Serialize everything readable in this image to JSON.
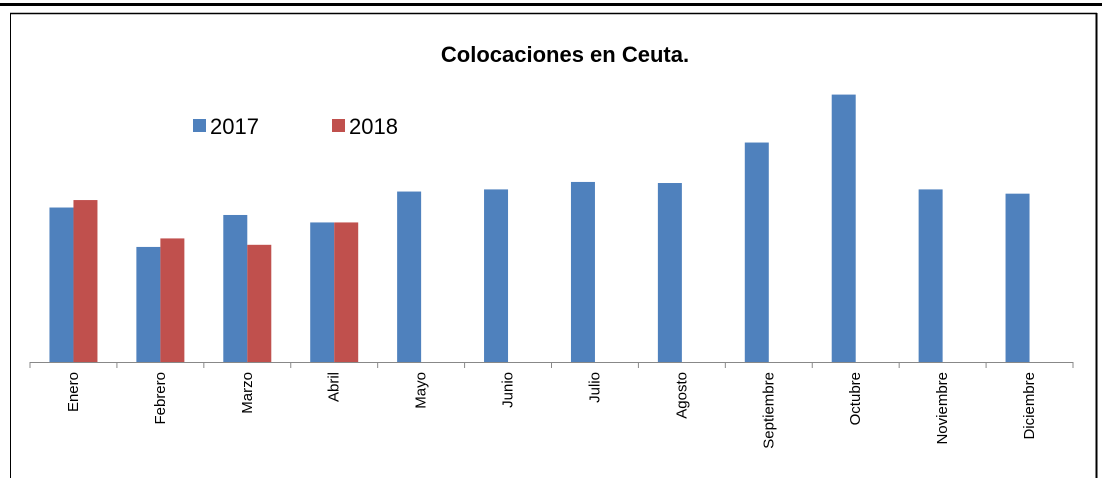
{
  "chart_data": {
    "type": "bar",
    "title": "Colocaciones en Ceuta.",
    "xlabel": "",
    "ylabel": "",
    "categories": [
      "Enero",
      "Febrero",
      "Marzo",
      "Abril",
      "Mayo",
      "Junio",
      "Julio",
      "Agosto",
      "Septiembre",
      "Octubre",
      "Noviembre",
      "Diciembre"
    ],
    "series": [
      {
        "name": "2017",
        "color": "#4F81BD",
        "values": [
          145,
          108,
          138,
          131,
          160,
          162,
          169,
          168,
          206,
          251,
          162,
          158
        ]
      },
      {
        "name": "2018",
        "color": "#C0504D",
        "values": [
          152,
          116,
          110,
          131,
          null,
          null,
          null,
          null,
          null,
          null,
          null,
          null
        ]
      }
    ],
    "ylim": [
      0,
      260
    ],
    "grid": false,
    "legend": "top-left"
  }
}
